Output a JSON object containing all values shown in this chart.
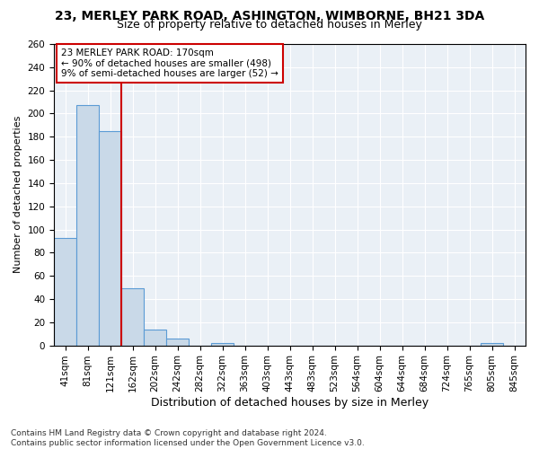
{
  "title1": "23, MERLEY PARK ROAD, ASHINGTON, WIMBORNE, BH21 3DA",
  "title2": "Size of property relative to detached houses in Merley",
  "xlabel": "Distribution of detached houses by size in Merley",
  "ylabel": "Number of detached properties",
  "bar_labels": [
    "41sqm",
    "81sqm",
    "121sqm",
    "162sqm",
    "202sqm",
    "242sqm",
    "282sqm",
    "322sqm",
    "363sqm",
    "403sqm",
    "443sqm",
    "483sqm",
    "523sqm",
    "564sqm",
    "604sqm",
    "644sqm",
    "684sqm",
    "724sqm",
    "765sqm",
    "805sqm",
    "845sqm"
  ],
  "bar_values": [
    93,
    207,
    185,
    49,
    14,
    6,
    0,
    2,
    0,
    0,
    0,
    0,
    0,
    0,
    0,
    0,
    0,
    0,
    0,
    2,
    0
  ],
  "bar_color": "#c9d9e8",
  "bar_edge_color": "#5b9bd5",
  "vline_x": 3.0,
  "annotation_text_line1": "23 MERLEY PARK ROAD: 170sqm",
  "annotation_text_line2": "← 90% of detached houses are smaller (498)",
  "annotation_text_line3": "9% of semi-detached houses are larger (52) →",
  "vline_color": "#cc0000",
  "ylim": [
    0,
    260
  ],
  "yticks": [
    0,
    20,
    40,
    60,
    80,
    100,
    120,
    140,
    160,
    180,
    200,
    220,
    240,
    260
  ],
  "bg_color": "#eaf0f6",
  "annotation_box_facecolor": "#ffffff",
  "annotation_box_edgecolor": "#cc0000",
  "footer": "Contains HM Land Registry data © Crown copyright and database right 2024.\nContains public sector information licensed under the Open Government Licence v3.0.",
  "title1_fontsize": 10,
  "title2_fontsize": 9,
  "ylabel_fontsize": 8,
  "xlabel_fontsize": 9,
  "tick_fontsize": 7.5,
  "footer_fontsize": 6.5
}
